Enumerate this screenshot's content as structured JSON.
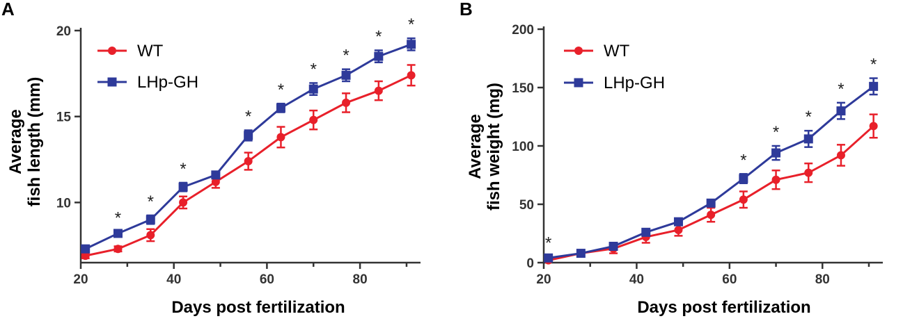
{
  "chart_data": [
    {
      "panel": "A",
      "type": "line",
      "title": "",
      "xlabel": "Days post fertilization",
      "ylabel_lines": [
        "Average",
        "fish length (mm)"
      ],
      "xlim": [
        20,
        93
      ],
      "ylim": [
        6.5,
        20
      ],
      "xticks": [
        20,
        40,
        60,
        80
      ],
      "yticks": [
        10,
        15,
        20
      ],
      "legend_position": "top-left",
      "x": [
        21,
        28,
        35,
        42,
        49,
        56,
        63,
        70,
        77,
        84,
        91
      ],
      "series": [
        {
          "name": "WT",
          "color": "#e8202a",
          "marker": "circle",
          "values": [
            6.9,
            7.3,
            8.1,
            10.0,
            11.2,
            12.4,
            13.8,
            14.8,
            15.8,
            16.5,
            17.4
          ],
          "errors": [
            0.15,
            0.15,
            0.35,
            0.35,
            0.35,
            0.5,
            0.6,
            0.55,
            0.55,
            0.55,
            0.6
          ]
        },
        {
          "name": "LHp-GH",
          "color": "#2e3a9a",
          "marker": "square",
          "values": [
            7.3,
            8.2,
            9.0,
            10.9,
            11.6,
            13.9,
            15.5,
            16.6,
            17.4,
            18.5,
            19.2
          ],
          "errors": [
            0.15,
            0.1,
            0.25,
            0.25,
            0.2,
            0.3,
            0.25,
            0.35,
            0.35,
            0.35,
            0.35
          ]
        }
      ],
      "significance": [
        {
          "x": 28,
          "label": "*"
        },
        {
          "x": 35,
          "label": "*"
        },
        {
          "x": 42,
          "label": "*"
        },
        {
          "x": 56,
          "label": "*"
        },
        {
          "x": 63,
          "label": "*"
        },
        {
          "x": 70,
          "label": "*"
        },
        {
          "x": 77,
          "label": "*"
        },
        {
          "x": 84,
          "label": "*"
        },
        {
          "x": 91,
          "label": "*"
        }
      ]
    },
    {
      "panel": "B",
      "type": "line",
      "title": "",
      "xlabel": "Days post fertilization",
      "ylabel_lines": [
        "Average",
        "fish weight (mg)"
      ],
      "xlim": [
        20,
        93
      ],
      "ylim": [
        0,
        200
      ],
      "xticks": [
        20,
        40,
        60,
        80
      ],
      "yticks": [
        0,
        50,
        100,
        150,
        200
      ],
      "legend_position": "top-left",
      "x": [
        21,
        28,
        35,
        42,
        49,
        56,
        63,
        70,
        77,
        84,
        91
      ],
      "series": [
        {
          "name": "WT",
          "color": "#e8202a",
          "marker": "circle",
          "values": [
            2,
            8,
            12,
            22,
            28,
            41,
            54,
            71,
            77,
            92,
            117
          ],
          "errors": [
            1,
            2,
            4,
            5,
            5,
            6,
            7,
            8,
            8,
            9,
            10
          ]
        },
        {
          "name": "LHp-GH",
          "color": "#2e3a9a",
          "marker": "square",
          "values": [
            4,
            8,
            14,
            26,
            35,
            51,
            72,
            94,
            106,
            130,
            151
          ],
          "errors": [
            1,
            2,
            3,
            3,
            3,
            3,
            4,
            6,
            7,
            7,
            7
          ]
        }
      ],
      "significance": [
        {
          "x": 21,
          "label": "*"
        },
        {
          "x": 63,
          "label": "*"
        },
        {
          "x": 70,
          "label": "*"
        },
        {
          "x": 77,
          "label": "*"
        },
        {
          "x": 84,
          "label": "*"
        },
        {
          "x": 91,
          "label": "*"
        }
      ]
    }
  ]
}
